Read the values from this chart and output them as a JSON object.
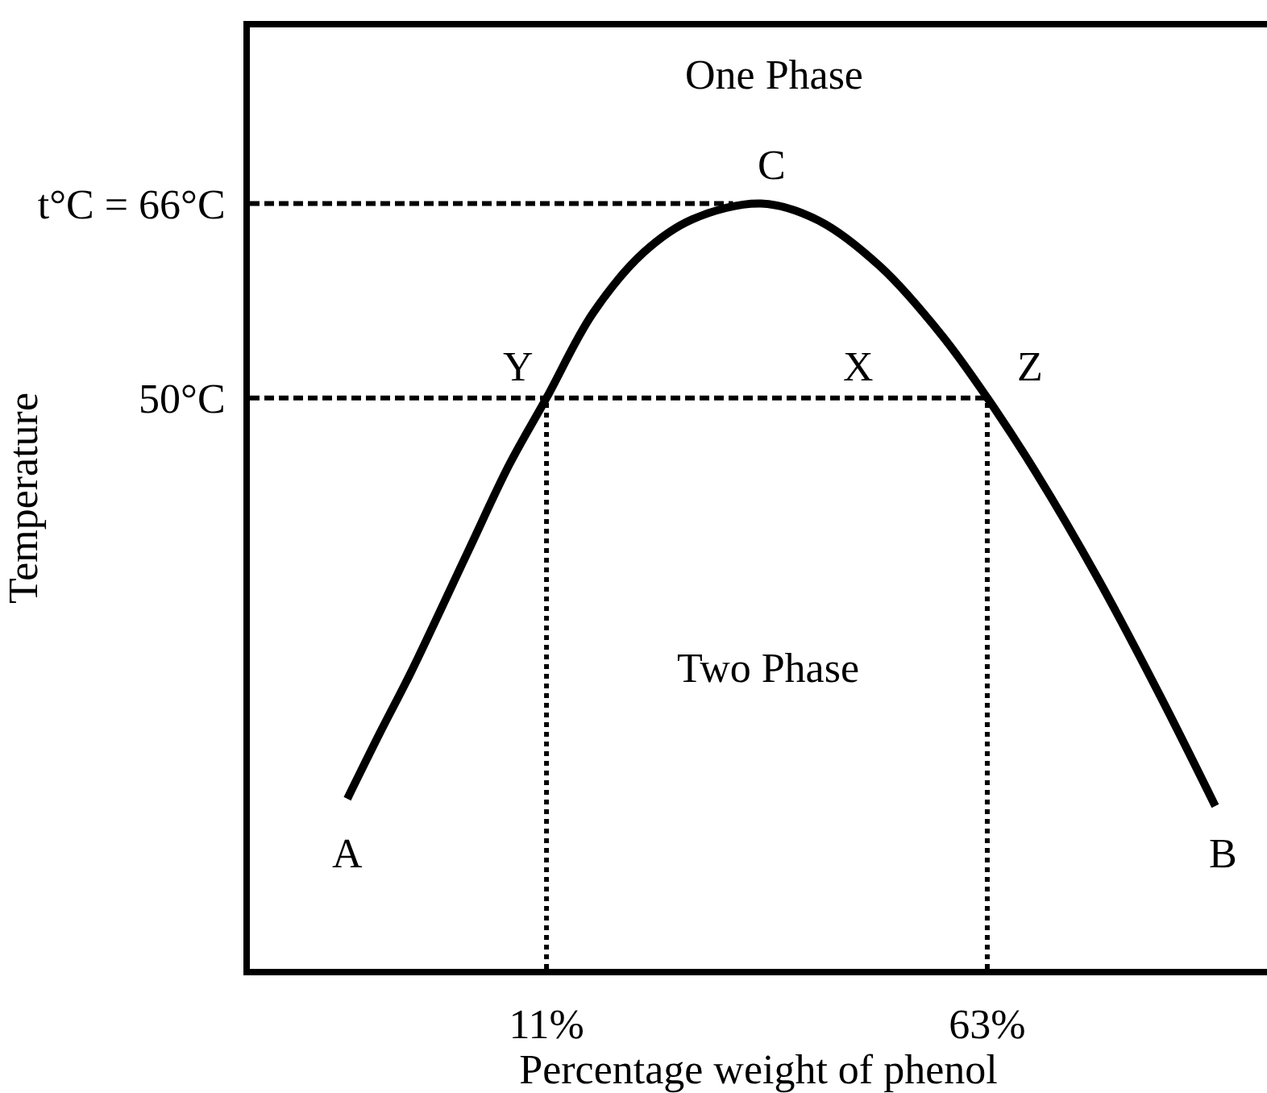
{
  "chart_data": {
    "type": "line",
    "xlabel": "Percentage weight of phenol",
    "ylabel": "Temperature",
    "xlim": [
      -24,
      96
    ],
    "ylim": [
      3,
      80.5
    ],
    "xticks": [
      {
        "value": 11,
        "label": "11%"
      },
      {
        "value": 63,
        "label": "63%"
      }
    ],
    "yticks": [
      {
        "value": 50,
        "label": "50°C"
      },
      {
        "value": 66,
        "label": "t°C = 66°C"
      }
    ],
    "series": [
      {
        "type": "line",
        "color": "#000000",
        "line_style": "solid",
        "x": [
          -12.5,
          -8.6,
          -5.0,
          1.7,
          6.6,
          11,
          16.5,
          22.5,
          28.2,
          36.3,
          43.1,
          50.4,
          57.7,
          63,
          68.7,
          76.0,
          83.3,
          89.9
        ],
        "values": [
          17.0,
          22.5,
          27.4,
          37.3,
          44.5,
          50,
          57.0,
          62.0,
          64.7,
          66,
          64.6,
          60.8,
          55.1,
          50,
          43.9,
          35.2,
          25.6,
          16.4
        ]
      },
      {
        "type": "line",
        "color": "#000000",
        "line_style": "dashed",
        "x": [
          -24,
          33
        ],
        "values": [
          66,
          66
        ]
      },
      {
        "type": "line",
        "color": "#000000",
        "line_style": "dashed",
        "x": [
          -24,
          63
        ],
        "values": [
          50,
          50
        ]
      },
      {
        "type": "line",
        "color": "#000000",
        "line_style": "dotted",
        "x": [
          11,
          11
        ],
        "values": [
          3,
          50
        ]
      },
      {
        "type": "line",
        "color": "#000000",
        "line_style": "dotted",
        "x": [
          63,
          63
        ],
        "values": [
          3,
          50
        ]
      }
    ],
    "annotations": [
      "One Phase",
      {
        "text": "C",
        "x": 36.3,
        "y": 66
      },
      {
        "text": "Y",
        "x": 11,
        "y": 50
      },
      {
        "text": "X",
        "x": 47.7,
        "y": 50
      },
      {
        "text": "Z",
        "x": 63,
        "y": 50
      },
      "Two Phase",
      {
        "text": "A",
        "x": -12.5,
        "y": 17.0
      },
      {
        "text": "B",
        "x": 89.9,
        "y": 16.4
      }
    ]
  }
}
